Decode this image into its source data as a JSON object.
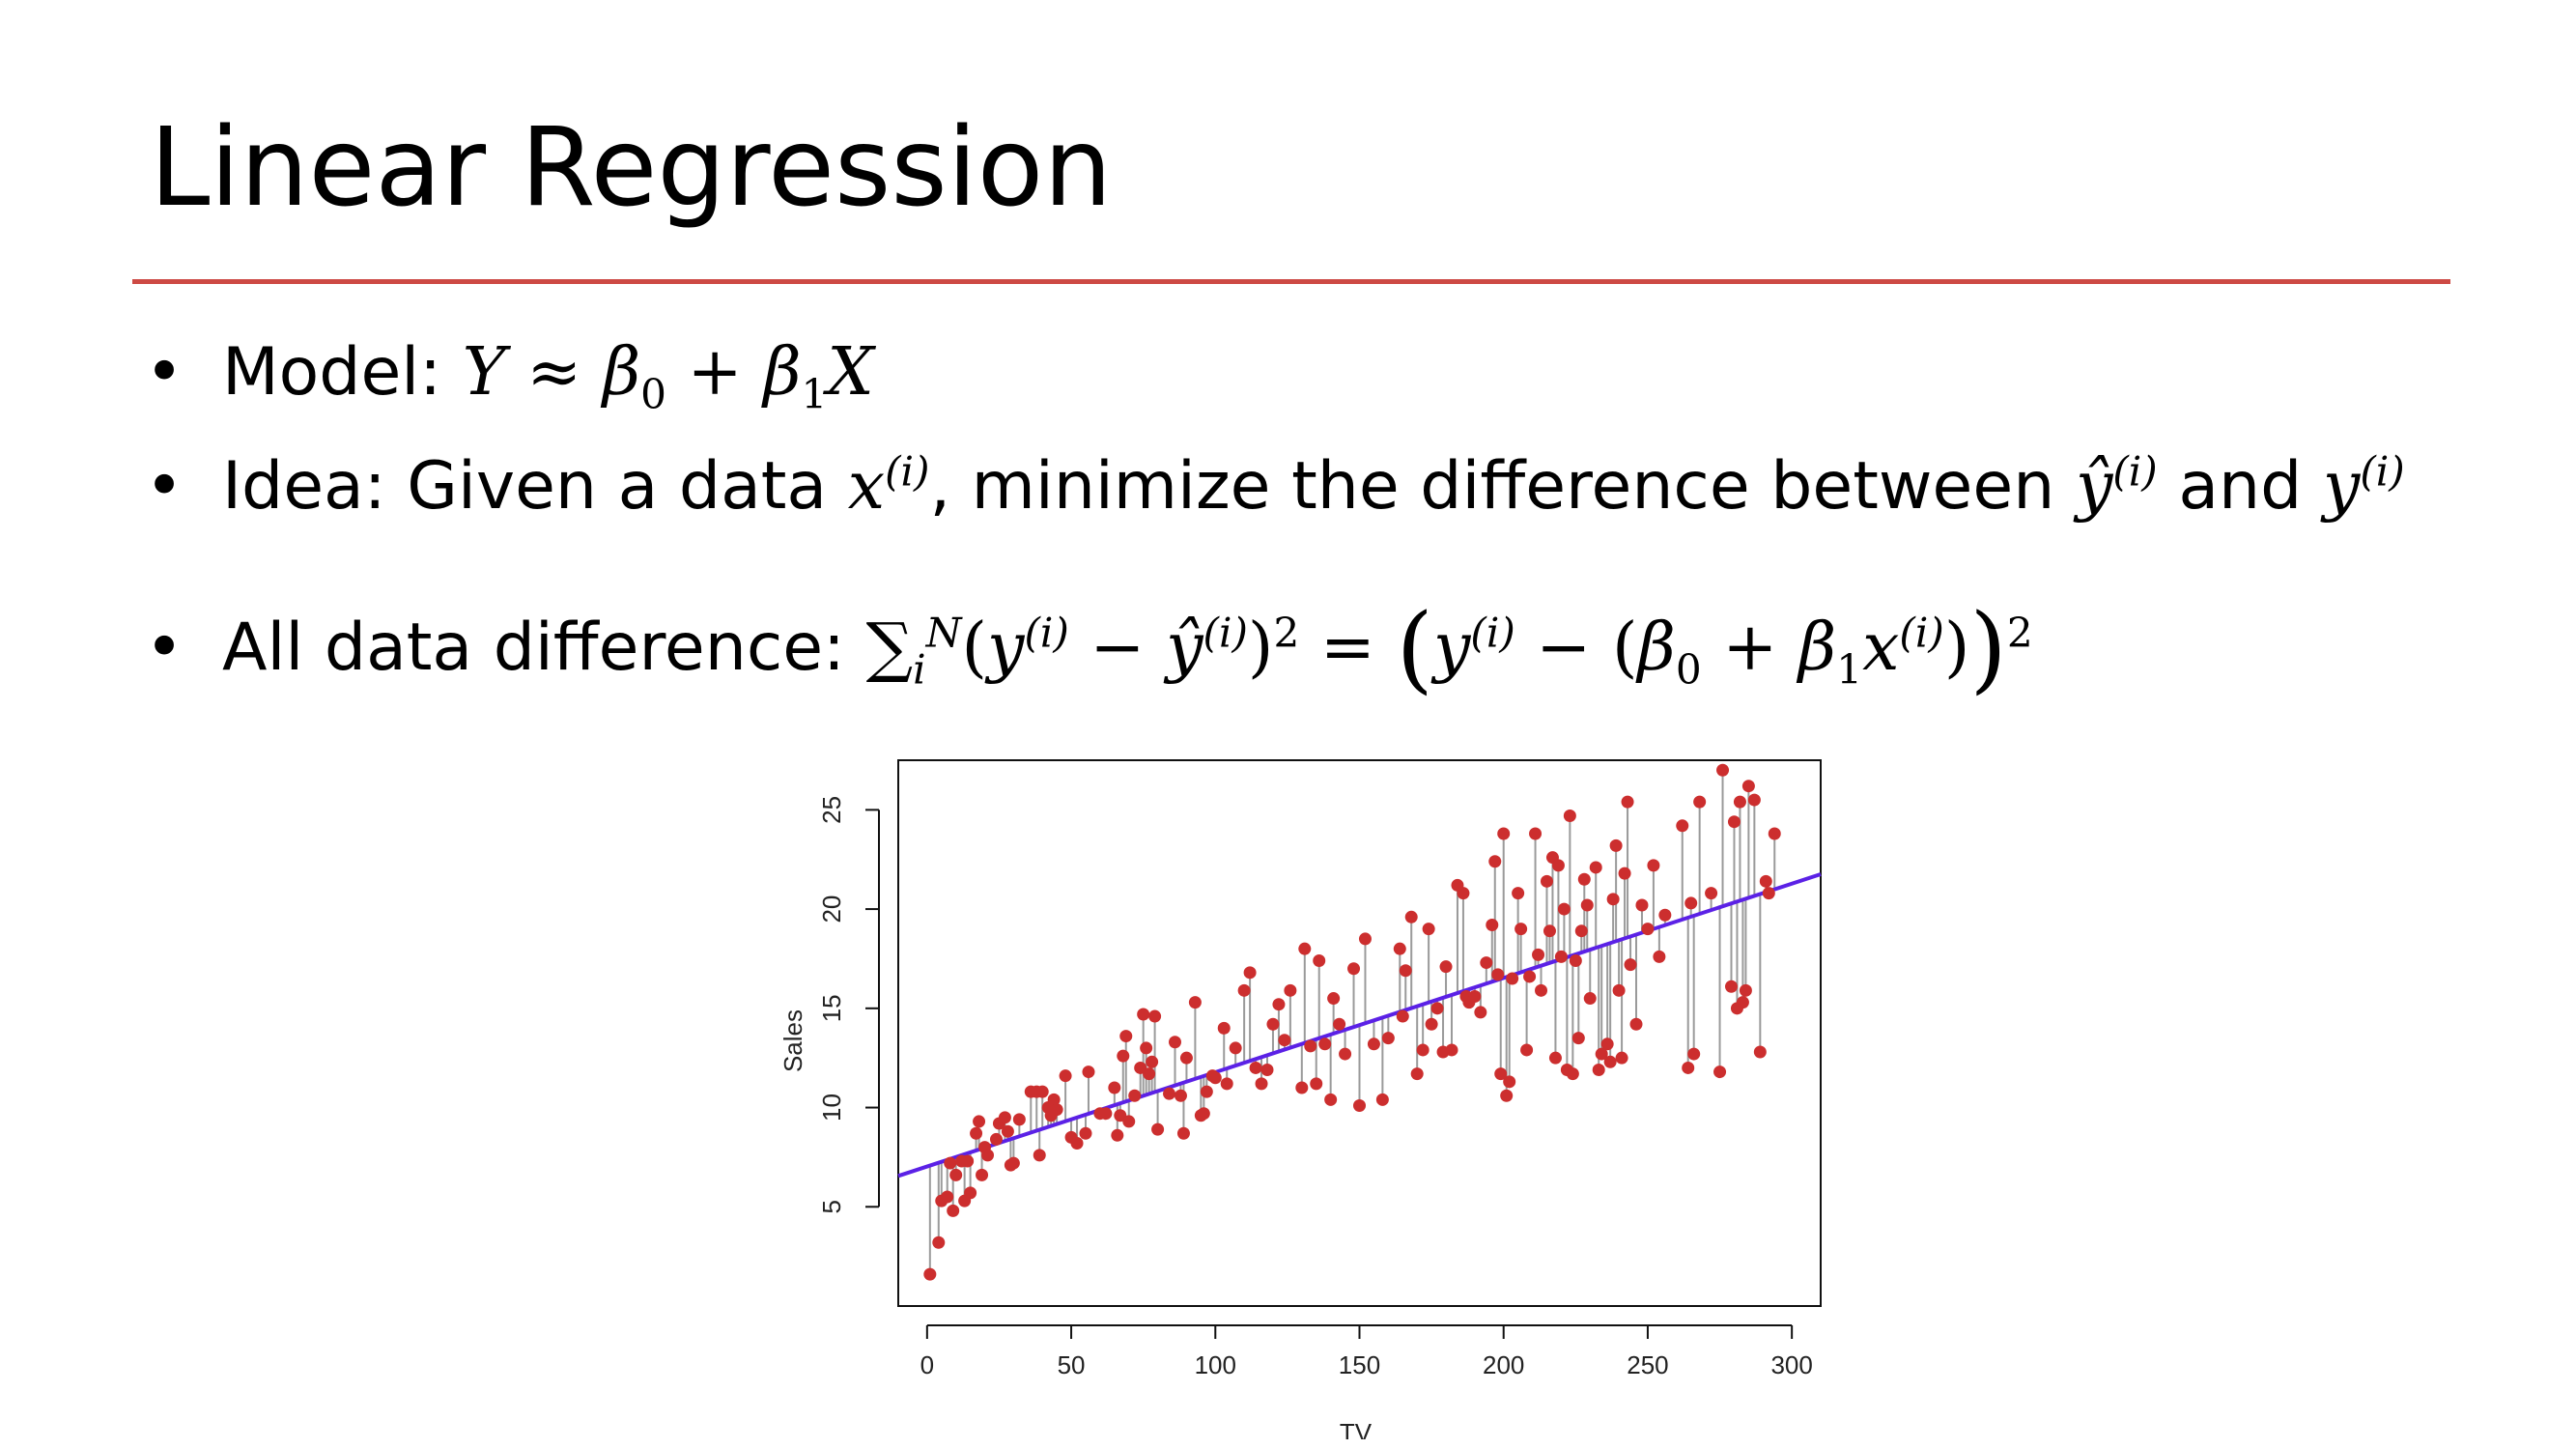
{
  "slide": {
    "title": "Linear Regression",
    "accent_color": "#cd4a44",
    "bullets": [
      {
        "bullet_symbol": "•",
        "label": "Model: ",
        "math": {
          "Y": "Y",
          "approx": "≈",
          "beta": "β",
          "sub0": "0",
          "plus": "+",
          "sub1": "1",
          "X": "X"
        }
      },
      {
        "bullet_symbol": "•",
        "text_a": "Idea: Given a data ",
        "x": "x",
        "sup_i": "(i)",
        "text_b": ", minimize the difference between ",
        "yhat": "ŷ",
        "text_c": " and ",
        "y": "y"
      },
      {
        "bullet_symbol": "•",
        "label": "All data difference: ",
        "sum": "∑",
        "sub_i": "i",
        "sup_N": "N",
        "sq": "2",
        "minus": "−",
        "equals": "="
      }
    ]
  },
  "chart_data": {
    "type": "scatter",
    "title": "",
    "xlabel": "TV",
    "ylabel": "Sales",
    "xlim": [
      -10,
      310
    ],
    "ylim": [
      0,
      27.5
    ],
    "xticks": [
      0,
      50,
      100,
      150,
      200,
      250,
      300
    ],
    "yticks": [
      5,
      10,
      15,
      20,
      25
    ],
    "point_color": "#cc2e2e",
    "residual_color": "#9a9a9a",
    "fit_line_color": "#5b21e6",
    "fit_line": {
      "intercept": 7.03,
      "slope": 0.0475
    },
    "points": [
      [
        1,
        1.6
      ],
      [
        4,
        3.2
      ],
      [
        5,
        5.3
      ],
      [
        7,
        5.5
      ],
      [
        8,
        7.2
      ],
      [
        9,
        4.8
      ],
      [
        10,
        6.6
      ],
      [
        12,
        7.3
      ],
      [
        13,
        5.3
      ],
      [
        14,
        7.3
      ],
      [
        15,
        5.7
      ],
      [
        17,
        8.7
      ],
      [
        18,
        9.3
      ],
      [
        19,
        6.6
      ],
      [
        20,
        8.0
      ],
      [
        21,
        7.6
      ],
      [
        24,
        8.4
      ],
      [
        25,
        9.2
      ],
      [
        27,
        9.5
      ],
      [
        28,
        8.8
      ],
      [
        29,
        7.1
      ],
      [
        30,
        7.2
      ],
      [
        32,
        9.4
      ],
      [
        36,
        10.8
      ],
      [
        38,
        10.8
      ],
      [
        39,
        7.6
      ],
      [
        40,
        10.8
      ],
      [
        42,
        10.0
      ],
      [
        43,
        9.6
      ],
      [
        44,
        10.4
      ],
      [
        45,
        9.9
      ],
      [
        48,
        11.6
      ],
      [
        50,
        8.5
      ],
      [
        52,
        8.2
      ],
      [
        55,
        8.7
      ],
      [
        56,
        11.8
      ],
      [
        60,
        9.7
      ],
      [
        62,
        9.7
      ],
      [
        65,
        11.0
      ],
      [
        66,
        8.6
      ],
      [
        67,
        9.6
      ],
      [
        68,
        12.6
      ],
      [
        69,
        13.6
      ],
      [
        70,
        9.3
      ],
      [
        72,
        10.6
      ],
      [
        74,
        12.0
      ],
      [
        75,
        14.7
      ],
      [
        76,
        13.0
      ],
      [
        77,
        11.7
      ],
      [
        78,
        12.3
      ],
      [
        79,
        14.6
      ],
      [
        80,
        8.9
      ],
      [
        84,
        10.7
      ],
      [
        86,
        13.3
      ],
      [
        88,
        10.6
      ],
      [
        89,
        8.7
      ],
      [
        90,
        12.5
      ],
      [
        93,
        15.3
      ],
      [
        95,
        9.6
      ],
      [
        96,
        9.7
      ],
      [
        97,
        10.8
      ],
      [
        99,
        11.6
      ],
      [
        100,
        11.5
      ],
      [
        103,
        14.0
      ],
      [
        104,
        11.2
      ],
      [
        107,
        13.0
      ],
      [
        110,
        15.9
      ],
      [
        112,
        16.8
      ],
      [
        114,
        12.0
      ],
      [
        116,
        11.2
      ],
      [
        118,
        11.9
      ],
      [
        120,
        14.2
      ],
      [
        122,
        15.2
      ],
      [
        124,
        13.4
      ],
      [
        126,
        15.9
      ],
      [
        130,
        11.0
      ],
      [
        131,
        18.0
      ],
      [
        133,
        13.1
      ],
      [
        135,
        11.2
      ],
      [
        136,
        17.4
      ],
      [
        138,
        13.2
      ],
      [
        140,
        10.4
      ],
      [
        141,
        15.5
      ],
      [
        143,
        14.2
      ],
      [
        145,
        12.7
      ],
      [
        148,
        17.0
      ],
      [
        150,
        10.1
      ],
      [
        152,
        18.5
      ],
      [
        155,
        13.2
      ],
      [
        158,
        10.4
      ],
      [
        160,
        13.5
      ],
      [
        164,
        18.0
      ],
      [
        165,
        14.6
      ],
      [
        166,
        16.9
      ],
      [
        168,
        19.6
      ],
      [
        170,
        11.7
      ],
      [
        172,
        12.9
      ],
      [
        174,
        19.0
      ],
      [
        175,
        14.2
      ],
      [
        177,
        15.0
      ],
      [
        179,
        12.8
      ],
      [
        180,
        17.1
      ],
      [
        182,
        12.9
      ],
      [
        184,
        21.2
      ],
      [
        186,
        20.8
      ],
      [
        187,
        15.6
      ],
      [
        188,
        15.3
      ],
      [
        190,
        15.6
      ],
      [
        192,
        14.8
      ],
      [
        194,
        17.3
      ],
      [
        196,
        19.2
      ],
      [
        197,
        22.4
      ],
      [
        198,
        16.7
      ],
      [
        199,
        11.7
      ],
      [
        200,
        23.8
      ],
      [
        201,
        10.6
      ],
      [
        202,
        11.3
      ],
      [
        203,
        16.5
      ],
      [
        205,
        20.8
      ],
      [
        206,
        19.0
      ],
      [
        208,
        12.9
      ],
      [
        209,
        16.6
      ],
      [
        211,
        23.8
      ],
      [
        212,
        17.7
      ],
      [
        213,
        15.9
      ],
      [
        215,
        21.4
      ],
      [
        216,
        18.9
      ],
      [
        217,
        22.6
      ],
      [
        218,
        12.5
      ],
      [
        219,
        22.2
      ],
      [
        220,
        17.6
      ],
      [
        221,
        20.0
      ],
      [
        222,
        11.9
      ],
      [
        223,
        24.7
      ],
      [
        224,
        11.7
      ],
      [
        225,
        17.4
      ],
      [
        226,
        13.5
      ],
      [
        227,
        18.9
      ],
      [
        228,
        21.5
      ],
      [
        229,
        20.2
      ],
      [
        230,
        15.5
      ],
      [
        232,
        22.1
      ],
      [
        233,
        11.9
      ],
      [
        234,
        12.7
      ],
      [
        236,
        13.2
      ],
      [
        237,
        12.3
      ],
      [
        238,
        20.5
      ],
      [
        239,
        23.2
      ],
      [
        240,
        15.9
      ],
      [
        241,
        12.5
      ],
      [
        242,
        21.8
      ],
      [
        243,
        25.4
      ],
      [
        244,
        17.2
      ],
      [
        246,
        14.2
      ],
      [
        248,
        20.2
      ],
      [
        250,
        19.0
      ],
      [
        252,
        22.2
      ],
      [
        254,
        17.6
      ],
      [
        256,
        19.7
      ],
      [
        262,
        24.2
      ],
      [
        264,
        12.0
      ],
      [
        265,
        20.3
      ],
      [
        266,
        12.7
      ],
      [
        268,
        25.4
      ],
      [
        272,
        20.8
      ],
      [
        275,
        11.8
      ],
      [
        276,
        27.0
      ],
      [
        279,
        16.1
      ],
      [
        280,
        24.4
      ],
      [
        281,
        15.0
      ],
      [
        282,
        25.4
      ],
      [
        283,
        15.3
      ],
      [
        284,
        15.9
      ],
      [
        285,
        26.2
      ],
      [
        287,
        25.5
      ],
      [
        289,
        12.8
      ],
      [
        291,
        21.4
      ],
      [
        292,
        20.8
      ],
      [
        294,
        23.8
      ]
    ]
  }
}
